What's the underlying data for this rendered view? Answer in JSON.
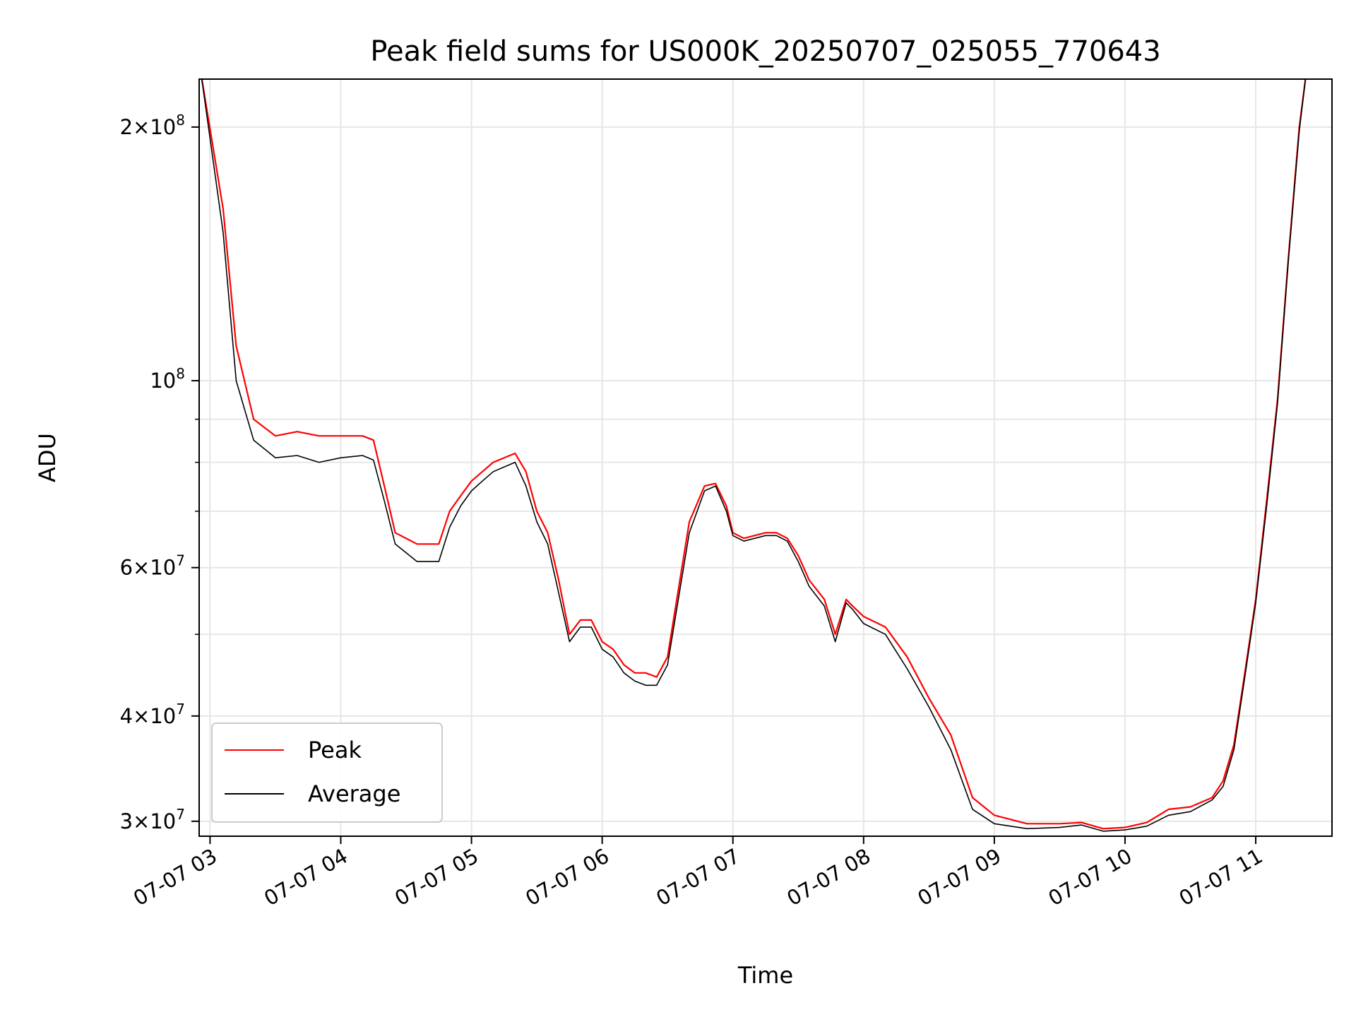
{
  "chart_data": {
    "type": "line",
    "title": "Peak field sums for US000K_20250707_025055_770643",
    "xlabel": "Time",
    "ylabel": "ADU",
    "x_tick_labels": [
      "07-07 03",
      "07-07 04",
      "07-07 05",
      "07-07 06",
      "07-07 07",
      "07-07 08",
      "07-07 09",
      "07-07 10",
      "07-07 11"
    ],
    "y_tick_labels": [
      {
        "value": 30000000,
        "mantissa": "3",
        "exponent": "7"
      },
      {
        "value": 40000000,
        "mantissa": "4",
        "exponent": "7"
      },
      {
        "value": 60000000,
        "mantissa": "6",
        "exponent": "7"
      },
      {
        "value": 100000000,
        "mantissa": "",
        "exponent": "8"
      },
      {
        "value": 200000000,
        "mantissa": "2",
        "exponent": "8"
      }
    ],
    "y_scale": "log",
    "xlim": [
      "2025-07-07T02:55",
      "2025-07-07T11:35"
    ],
    "ylim": [
      28800000,
      228000000
    ],
    "grid": true,
    "legend_position": "lower-left",
    "series": [
      {
        "name": "Peak",
        "color": "#ff0000",
        "points": [
          [
            "2025-07-07T02:56",
            230000000
          ],
          [
            "2025-07-07T03:06",
            160000000
          ],
          [
            "2025-07-07T03:12",
            110000000
          ],
          [
            "2025-07-07T03:20",
            90000000
          ],
          [
            "2025-07-07T03:30",
            86000000
          ],
          [
            "2025-07-07T03:40",
            87000000
          ],
          [
            "2025-07-07T03:50",
            86000000
          ],
          [
            "2025-07-07T04:00",
            86000000
          ],
          [
            "2025-07-07T04:10",
            86000000
          ],
          [
            "2025-07-07T04:15",
            85000000
          ],
          [
            "2025-07-07T04:20",
            75000000
          ],
          [
            "2025-07-07T04:25",
            66000000
          ],
          [
            "2025-07-07T04:35",
            64000000
          ],
          [
            "2025-07-07T04:45",
            64000000
          ],
          [
            "2025-07-07T04:50",
            70000000
          ],
          [
            "2025-07-07T04:55",
            73000000
          ],
          [
            "2025-07-07T05:00",
            76000000
          ],
          [
            "2025-07-07T05:05",
            78000000
          ],
          [
            "2025-07-07T05:10",
            80000000
          ],
          [
            "2025-07-07T05:20",
            82000000
          ],
          [
            "2025-07-07T05:25",
            78000000
          ],
          [
            "2025-07-07T05:30",
            70000000
          ],
          [
            "2025-07-07T05:35",
            66000000
          ],
          [
            "2025-07-07T05:40",
            58000000
          ],
          [
            "2025-07-07T05:45",
            50000000
          ],
          [
            "2025-07-07T05:50",
            52000000
          ],
          [
            "2025-07-07T05:55",
            52000000
          ],
          [
            "2025-07-07T06:00",
            49000000
          ],
          [
            "2025-07-07T06:05",
            48000000
          ],
          [
            "2025-07-07T06:10",
            46000000
          ],
          [
            "2025-07-07T06:15",
            45000000
          ],
          [
            "2025-07-07T06:20",
            45000000
          ],
          [
            "2025-07-07T06:25",
            44500000
          ],
          [
            "2025-07-07T06:30",
            47000000
          ],
          [
            "2025-07-07T06:40",
            68000000
          ],
          [
            "2025-07-07T06:47",
            75000000
          ],
          [
            "2025-07-07T06:52",
            75500000
          ],
          [
            "2025-07-07T06:57",
            71000000
          ],
          [
            "2025-07-07T07:00",
            66000000
          ],
          [
            "2025-07-07T07:05",
            65000000
          ],
          [
            "2025-07-07T07:15",
            66000000
          ],
          [
            "2025-07-07T07:20",
            66000000
          ],
          [
            "2025-07-07T07:25",
            65000000
          ],
          [
            "2025-07-07T07:30",
            62000000
          ],
          [
            "2025-07-07T07:35",
            58000000
          ],
          [
            "2025-07-07T07:42",
            55000000
          ],
          [
            "2025-07-07T07:47",
            50000000
          ],
          [
            "2025-07-07T07:52",
            55000000
          ],
          [
            "2025-07-07T07:55",
            54000000
          ],
          [
            "2025-07-07T08:00",
            52500000
          ],
          [
            "2025-07-07T08:10",
            51000000
          ],
          [
            "2025-07-07T08:20",
            47000000
          ],
          [
            "2025-07-07T08:30",
            42000000
          ],
          [
            "2025-07-07T08:40",
            38000000
          ],
          [
            "2025-07-07T08:50",
            32000000
          ],
          [
            "2025-07-07T09:00",
            30500000
          ],
          [
            "2025-07-07T09:15",
            29800000
          ],
          [
            "2025-07-07T09:30",
            29800000
          ],
          [
            "2025-07-07T09:40",
            29900000
          ],
          [
            "2025-07-07T09:50",
            29400000
          ],
          [
            "2025-07-07T10:00",
            29500000
          ],
          [
            "2025-07-07T10:10",
            29900000
          ],
          [
            "2025-07-07T10:20",
            31000000
          ],
          [
            "2025-07-07T10:30",
            31200000
          ],
          [
            "2025-07-07T10:40",
            32000000
          ],
          [
            "2025-07-07T10:45",
            33500000
          ],
          [
            "2025-07-07T10:50",
            37000000
          ],
          [
            "2025-07-07T10:55",
            45000000
          ],
          [
            "2025-07-07T11:00",
            55000000
          ],
          [
            "2025-07-07T11:05",
            72000000
          ],
          [
            "2025-07-07T11:10",
            95000000
          ],
          [
            "2025-07-07T11:15",
            140000000
          ],
          [
            "2025-07-07T11:20",
            200000000
          ],
          [
            "2025-07-07T11:23",
            230000000
          ]
        ]
      },
      {
        "name": "Average",
        "color": "#000000",
        "points": [
          [
            "2025-07-07T02:56",
            230000000
          ],
          [
            "2025-07-07T03:06",
            150000000
          ],
          [
            "2025-07-07T03:12",
            100000000
          ],
          [
            "2025-07-07T03:20",
            85000000
          ],
          [
            "2025-07-07T03:30",
            81000000
          ],
          [
            "2025-07-07T03:40",
            81500000
          ],
          [
            "2025-07-07T03:50",
            80000000
          ],
          [
            "2025-07-07T04:00",
            81000000
          ],
          [
            "2025-07-07T04:10",
            81500000
          ],
          [
            "2025-07-07T04:15",
            80500000
          ],
          [
            "2025-07-07T04:20",
            72000000
          ],
          [
            "2025-07-07T04:25",
            64000000
          ],
          [
            "2025-07-07T04:35",
            61000000
          ],
          [
            "2025-07-07T04:45",
            61000000
          ],
          [
            "2025-07-07T04:50",
            67000000
          ],
          [
            "2025-07-07T04:55",
            71000000
          ],
          [
            "2025-07-07T05:00",
            74000000
          ],
          [
            "2025-07-07T05:05",
            76000000
          ],
          [
            "2025-07-07T05:10",
            78000000
          ],
          [
            "2025-07-07T05:20",
            80000000
          ],
          [
            "2025-07-07T05:25",
            75000000
          ],
          [
            "2025-07-07T05:30",
            68000000
          ],
          [
            "2025-07-07T05:35",
            64000000
          ],
          [
            "2025-07-07T05:40",
            56000000
          ],
          [
            "2025-07-07T05:45",
            49000000
          ],
          [
            "2025-07-07T05:50",
            51000000
          ],
          [
            "2025-07-07T05:55",
            51000000
          ],
          [
            "2025-07-07T06:00",
            48000000
          ],
          [
            "2025-07-07T06:05",
            47000000
          ],
          [
            "2025-07-07T06:10",
            45000000
          ],
          [
            "2025-07-07T06:15",
            44000000
          ],
          [
            "2025-07-07T06:20",
            43500000
          ],
          [
            "2025-07-07T06:25",
            43500000
          ],
          [
            "2025-07-07T06:30",
            46000000
          ],
          [
            "2025-07-07T06:40",
            66000000
          ],
          [
            "2025-07-07T06:47",
            74000000
          ],
          [
            "2025-07-07T06:52",
            75000000
          ],
          [
            "2025-07-07T06:57",
            70000000
          ],
          [
            "2025-07-07T07:00",
            65500000
          ],
          [
            "2025-07-07T07:05",
            64500000
          ],
          [
            "2025-07-07T07:15",
            65500000
          ],
          [
            "2025-07-07T07:20",
            65500000
          ],
          [
            "2025-07-07T07:25",
            64500000
          ],
          [
            "2025-07-07T07:30",
            61000000
          ],
          [
            "2025-07-07T07:35",
            57000000
          ],
          [
            "2025-07-07T07:42",
            54000000
          ],
          [
            "2025-07-07T07:47",
            49000000
          ],
          [
            "2025-07-07T07:52",
            54500000
          ],
          [
            "2025-07-07T07:55",
            53500000
          ],
          [
            "2025-07-07T08:00",
            51500000
          ],
          [
            "2025-07-07T08:10",
            50000000
          ],
          [
            "2025-07-07T08:20",
            45500000
          ],
          [
            "2025-07-07T08:30",
            41000000
          ],
          [
            "2025-07-07T08:40",
            36500000
          ],
          [
            "2025-07-07T08:50",
            31000000
          ],
          [
            "2025-07-07T09:00",
            29800000
          ],
          [
            "2025-07-07T09:15",
            29400000
          ],
          [
            "2025-07-07T09:30",
            29500000
          ],
          [
            "2025-07-07T09:40",
            29700000
          ],
          [
            "2025-07-07T09:50",
            29200000
          ],
          [
            "2025-07-07T10:00",
            29300000
          ],
          [
            "2025-07-07T10:10",
            29600000
          ],
          [
            "2025-07-07T10:20",
            30500000
          ],
          [
            "2025-07-07T10:30",
            30800000
          ],
          [
            "2025-07-07T10:40",
            31800000
          ],
          [
            "2025-07-07T10:45",
            33000000
          ],
          [
            "2025-07-07T10:50",
            36500000
          ],
          [
            "2025-07-07T10:55",
            44500000
          ],
          [
            "2025-07-07T11:00",
            54500000
          ],
          [
            "2025-07-07T11:05",
            71000000
          ],
          [
            "2025-07-07T11:10",
            94000000
          ],
          [
            "2025-07-07T11:15",
            139000000
          ],
          [
            "2025-07-07T11:20",
            198000000
          ],
          [
            "2025-07-07T11:23",
            230000000
          ]
        ]
      }
    ]
  }
}
